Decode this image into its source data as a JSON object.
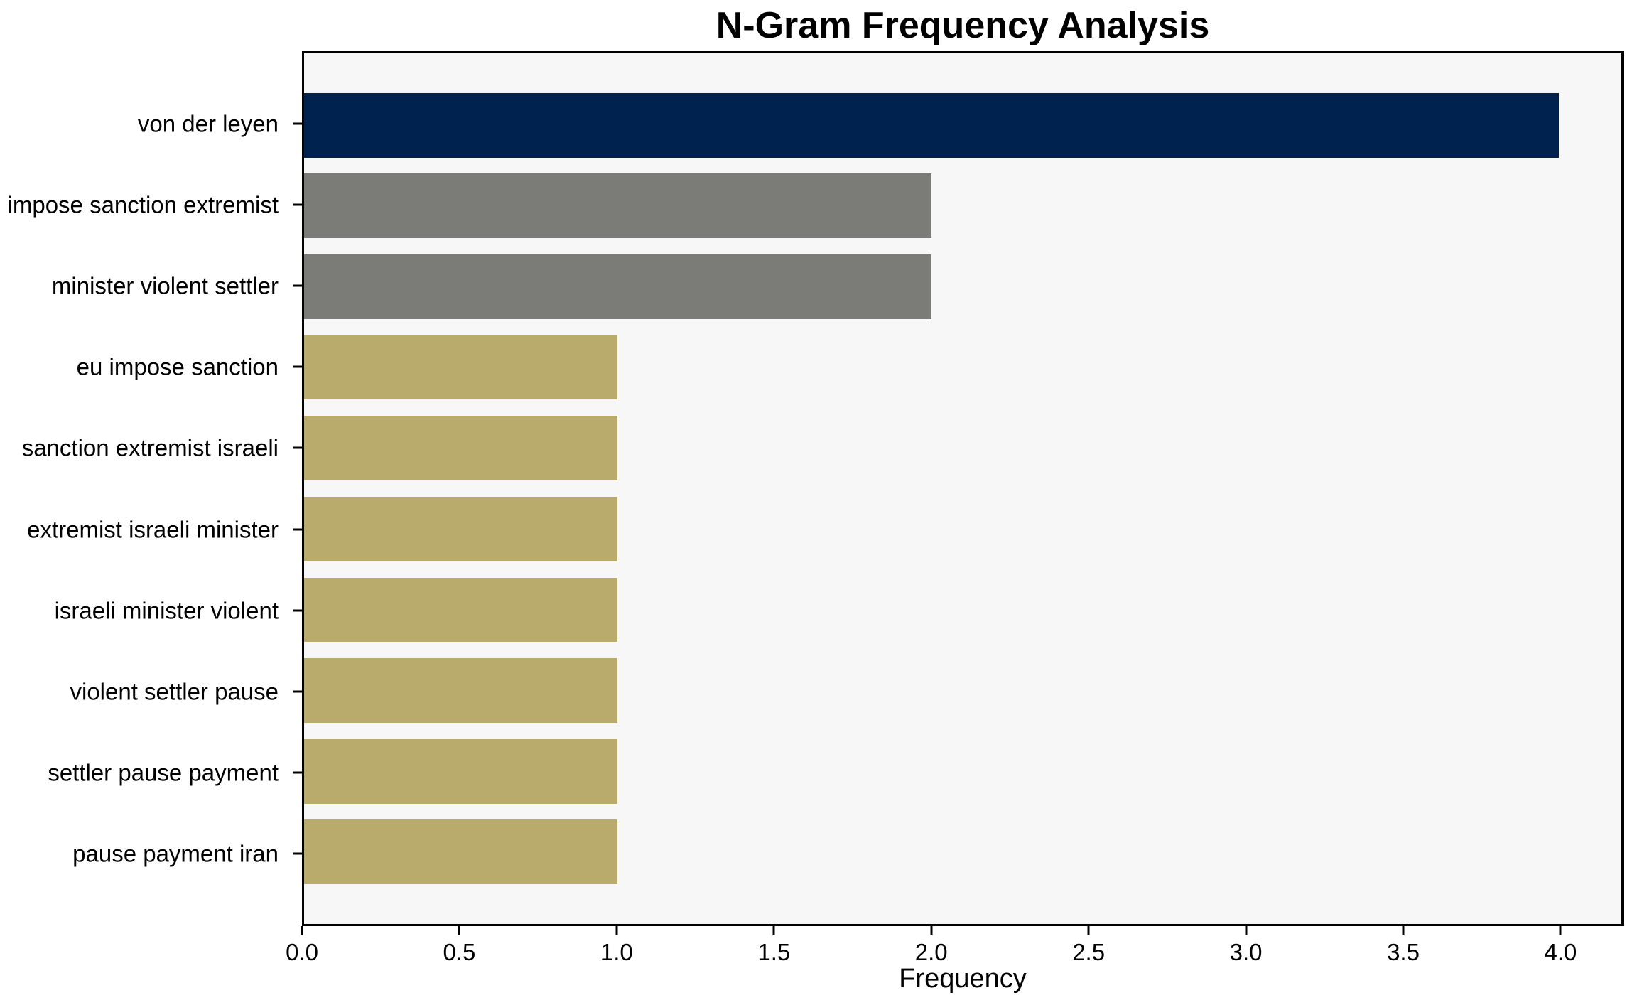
{
  "figure": {
    "background": "#ffffff",
    "plot_background": "#f7f7f7",
    "spine_color": "#000000"
  },
  "chart_data": {
    "type": "bar",
    "orientation": "horizontal",
    "title": "N-Gram Frequency Analysis",
    "xlabel": "Frequency",
    "ylabel": "",
    "categories": [
      "von der leyen",
      "impose sanction extremist",
      "minister violent settler",
      "eu impose sanction",
      "sanction extremist israeli",
      "extremist israeli minister",
      "israeli minister violent",
      "violent settler pause",
      "settler pause payment",
      "pause payment iran"
    ],
    "values": [
      4,
      2,
      2,
      1,
      1,
      1,
      1,
      1,
      1,
      1
    ],
    "bar_colors": [
      "#00224e",
      "#7b7b77",
      "#7b7b77",
      "#b9ab6c",
      "#b9ab6c",
      "#b9ab6c",
      "#b9ab6c",
      "#b9ab6c",
      "#b9ab6c",
      "#b9ab6c"
    ],
    "xlim": [
      0,
      4.2
    ],
    "xticks": [
      0.0,
      0.5,
      1.0,
      1.5,
      2.0,
      2.5,
      3.0,
      3.5,
      4.0
    ],
    "xtick_labels": [
      "0.0",
      "0.5",
      "1.0",
      "1.5",
      "2.0",
      "2.5",
      "3.0",
      "3.5",
      "4.0"
    ],
    "bar_relative_height": 0.8,
    "grid": false,
    "legend": null
  }
}
